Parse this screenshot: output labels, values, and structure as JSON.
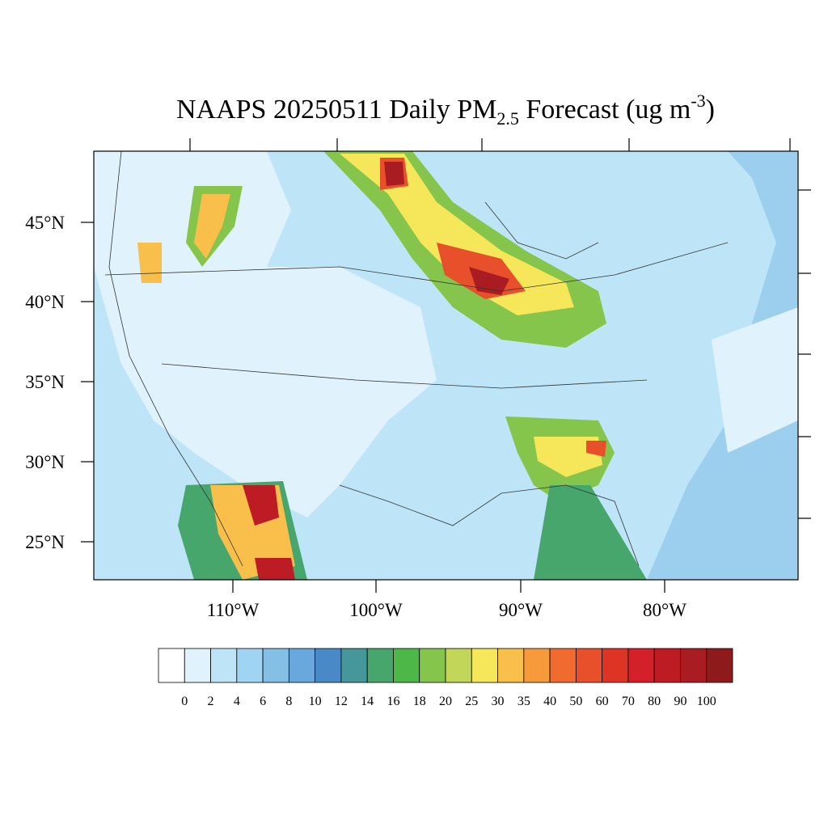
{
  "title": {
    "main": "NAAPS 20250511 Daily PM",
    "subscript": "2.5",
    "middle": " Forecast (ug m",
    "superscript": "-3",
    "end": ")"
  },
  "lat_labels": [
    "45°N",
    "40°N",
    "35°N",
    "30°N",
    "25°N"
  ],
  "lon_labels": [
    "110°W",
    "100°W",
    "90°W",
    "80°W"
  ],
  "colorbar": {
    "levels": [
      0,
      2,
      4,
      6,
      8,
      10,
      12,
      14,
      16,
      18,
      20,
      25,
      30,
      35,
      40,
      50,
      60,
      70,
      80,
      90,
      100
    ],
    "colors": [
      "#ffffff",
      "#e0f2fb",
      "#bde5f7",
      "#9fd5f2",
      "#84bfe6",
      "#68a8dc",
      "#4a89c8",
      "#45979b",
      "#46a66c",
      "#4db848",
      "#85c54c",
      "#c2d65a",
      "#f6e65a",
      "#f8bf4a",
      "#f69a3c",
      "#f26b2e",
      "#e8502c",
      "#de3426",
      "#d42028",
      "#be1c24",
      "#a81c22",
      "#8e1a1c"
    ]
  }
}
